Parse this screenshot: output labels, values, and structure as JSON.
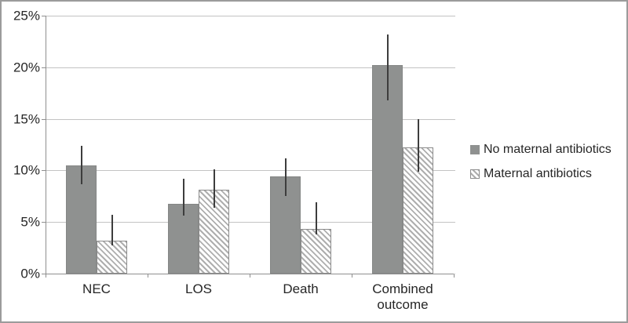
{
  "figure": {
    "background": "#ffffff",
    "border_color": "#9b9b9b"
  },
  "chart_data": {
    "type": "bar",
    "title": "",
    "xlabel": "",
    "ylabel": "",
    "categories": [
      "NEC",
      "LOS",
      "Death",
      "Combined outcome"
    ],
    "series": [
      {
        "name": "No maternal antibiotics",
        "style": "solid",
        "values": [
          10.5,
          6.8,
          9.4,
          20.2
        ],
        "error_low": [
          8.7,
          5.6,
          7.5,
          16.8
        ],
        "error_high": [
          12.4,
          9.2,
          11.2,
          23.2
        ]
      },
      {
        "name": "Maternal antibiotics",
        "style": "hatched",
        "values": [
          3.2,
          8.1,
          4.3,
          12.2
        ],
        "error_low": [
          2.7,
          6.4,
          3.8,
          9.9
        ],
        "error_high": [
          5.7,
          10.1,
          6.9,
          15.0
        ]
      }
    ],
    "ylim": [
      0,
      25
    ],
    "ytick_values": [
      0,
      5,
      10,
      15,
      20,
      25
    ],
    "ytick_labels": [
      "0%",
      "5%",
      "10%",
      "15%",
      "20%",
      "25%"
    ],
    "grid": true,
    "error_bars": true,
    "legend_position": "right",
    "colors": {
      "solid_bar": "#8f9190",
      "hatch_line": "#aeaeae",
      "hatch_background": "#ffffff",
      "gridline": "#c3c3c3",
      "axis": "#8f8f8f",
      "error_bar": "#3d3d3d",
      "text": "#262626"
    }
  }
}
